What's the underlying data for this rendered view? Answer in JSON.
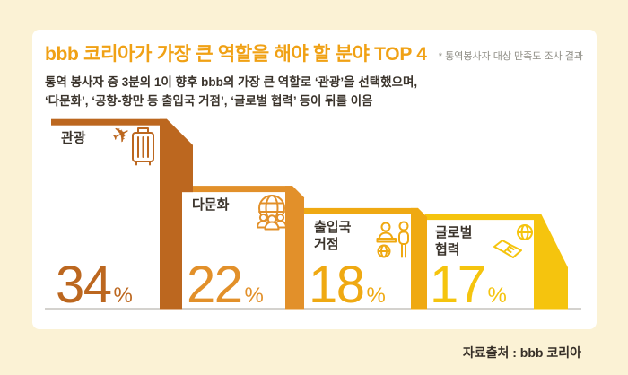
{
  "background": {
    "page_bg": "#fbf2d5",
    "card_bg": "#ffffff"
  },
  "header": {
    "title": "bbb 코리아가 가장 큰 역할을 해야 할 분야 TOP 4",
    "title_color": "#f0a115",
    "note": "* 통역봉사자 대상 만족도 조사 결과",
    "note_color": "#8f8e86",
    "subtitle_line1": "통역 봉사자 중 3분의 1이 향후 bbb의 가장 큰 역할로 ‘관광’을 선택했으며,",
    "subtitle_line2": "‘다문화’, ‘공항-항만 등 출입국 거점’, ‘글로벌 협력’ 등이 뒤를 이음",
    "subtitle_color": "#3a332b"
  },
  "chart_data": {
    "type": "bar",
    "style": "descending-staircase-podium",
    "title": "bbb 코리아가 가장 큰 역할을 해야 할 분야 TOP 4",
    "footnote": "* 통역봉사자 대상 만족도 조사 결과",
    "source": "자료출처 : bbb 코리아",
    "categories": [
      "관광",
      "다문화",
      "출입국 거점",
      "글로벌 협력"
    ],
    "values": [
      34,
      22,
      18,
      17
    ],
    "unit": "%",
    "value_labels_shown": true,
    "colors": [
      "#bc671f",
      "#e2902a",
      "#efa912",
      "#f5c40e"
    ],
    "label_color": "#3a332b",
    "baseline_color": "#aaa69e",
    "icons": [
      "travel-luggage-icon",
      "multicultural-globe-icon",
      "immigration-desk-icon",
      "handshake-globe-icon"
    ],
    "xlabel": "",
    "ylabel": "",
    "ylim": [
      0,
      40
    ],
    "grid": false,
    "legend": false
  },
  "footer": {
    "source": "자료출처 : bbb 코리아",
    "color": "#362f27"
  }
}
